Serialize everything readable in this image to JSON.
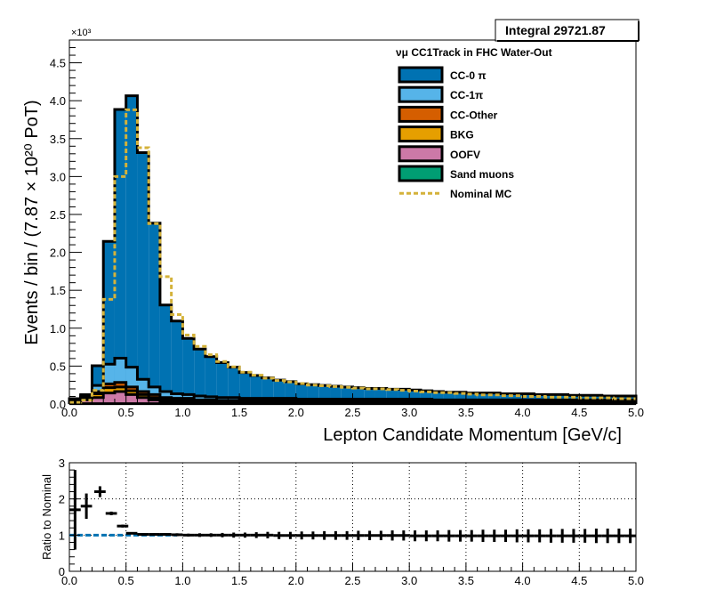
{
  "chart_data": [
    {
      "type": "stacked-histogram",
      "stat_box": "Integral 29721.87",
      "exponent_label": "×10³",
      "ylabel": "Events / bin / (7.87  × 10²⁰ PoT)",
      "xlabel": "Lepton Candidate Momentum [GeV/c]",
      "legend_title": "νμ CC1Track in FHC Water-Out",
      "legend_placement": "top-right",
      "xlim": [
        0,
        5
      ],
      "ylim": [
        0,
        4.8
      ],
      "x_ticks": [
        "0.0",
        "0.5",
        "1.0",
        "1.5",
        "2.0",
        "2.5",
        "3.0",
        "3.5",
        "4.0",
        "4.5",
        "5.0"
      ],
      "y_ticks": [
        "0.0",
        "0.5",
        "1.0",
        "1.5",
        "2.0",
        "2.5",
        "3.0",
        "3.5",
        "4.0",
        "4.5"
      ],
      "bin_edges": [
        0,
        0.1,
        0.2,
        0.3,
        0.4,
        0.5,
        0.6,
        0.7,
        0.8,
        0.9,
        1.0,
        1.1,
        1.2,
        1.3,
        1.4,
        1.5,
        1.6,
        1.7,
        1.8,
        1.9,
        2.0,
        2.1,
        2.2,
        2.3,
        2.4,
        2.5,
        2.6,
        2.7,
        2.8,
        2.9,
        3.0,
        3.1,
        3.2,
        3.3,
        3.4,
        3.5,
        3.6,
        3.7,
        3.8,
        3.9,
        4.0,
        4.1,
        4.2,
        4.3,
        4.4,
        4.5,
        4.6,
        4.7,
        4.8,
        4.9,
        5.0
      ],
      "series": [
        {
          "name": "CC-0 π",
          "color": "#0072b2",
          "values": [
            0.005,
            0.008,
            0.26,
            1.62,
            3.28,
            3.58,
            2.99,
            2.16,
            1.14,
            0.96,
            0.74,
            0.62,
            0.53,
            0.46,
            0.4,
            0.34,
            0.3,
            0.27,
            0.24,
            0.22,
            0.2,
            0.19,
            0.18,
            0.17,
            0.16,
            0.15,
            0.14,
            0.14,
            0.13,
            0.13,
            0.12,
            0.11,
            0.11,
            0.1,
            0.1,
            0.09,
            0.09,
            0.09,
            0.08,
            0.08,
            0.08,
            0.07,
            0.07,
            0.07,
            0.06,
            0.06,
            0.06,
            0.05,
            0.05,
            0.05
          ]
        },
        {
          "name": "CC-1π",
          "color": "#56b4e9",
          "values": [
            0.005,
            0.02,
            0.08,
            0.26,
            0.32,
            0.26,
            0.16,
            0.1,
            0.08,
            0.06,
            0.05,
            0.05,
            0.04,
            0.04,
            0.04,
            0.03,
            0.03,
            0.03,
            0.03,
            0.03,
            0.02,
            0.02,
            0.02,
            0.02,
            0.02,
            0.02,
            0.02,
            0.02,
            0.02,
            0.02,
            0.02,
            0.02,
            0.01,
            0.01,
            0.01,
            0.01,
            0.01,
            0.01,
            0.01,
            0.01,
            0.01,
            0.01,
            0.01,
            0.01,
            0.01,
            0.01,
            0.01,
            0.01,
            0.01,
            0.01
          ]
        },
        {
          "name": "CC-Other",
          "color": "#d55e00",
          "values": [
            0.005,
            0.01,
            0.03,
            0.05,
            0.06,
            0.05,
            0.04,
            0.04,
            0.03,
            0.03,
            0.03,
            0.02,
            0.02,
            0.02,
            0.02,
            0.02,
            0.02,
            0.02,
            0.02,
            0.02,
            0.02,
            0.02,
            0.02,
            0.02,
            0.02,
            0.02,
            0.02,
            0.02,
            0.02,
            0.02,
            0.02,
            0.02,
            0.02,
            0.02,
            0.02,
            0.02,
            0.02,
            0.02,
            0.02,
            0.02,
            0.02,
            0.02,
            0.02,
            0.02,
            0.02,
            0.02,
            0.02,
            0.02,
            0.02,
            0.02
          ]
        },
        {
          "name": "BKG",
          "color": "#e69f00",
          "values": [
            0.02,
            0.03,
            0.05,
            0.07,
            0.06,
            0.05,
            0.04,
            0.03,
            0.02,
            0.02,
            0.02,
            0.01,
            0.01,
            0.01,
            0.01,
            0.01,
            0.01,
            0.01,
            0.01,
            0.01,
            0.01,
            0.01,
            0.01,
            0.01,
            0.01,
            0.01,
            0.01,
            0.01,
            0.01,
            0.01,
            0.01,
            0.01,
            0.01,
            0.01,
            0.01,
            0.01,
            0.01,
            0.01,
            0.01,
            0.01,
            0.01,
            0.01,
            0.01,
            0.01,
            0.01,
            0.01,
            0.01,
            0.01,
            0.01,
            0.01
          ]
        },
        {
          "name": "OOFV",
          "color": "#cc79a7",
          "values": [
            0.03,
            0.05,
            0.08,
            0.14,
            0.16,
            0.12,
            0.08,
            0.05,
            0.03,
            0.02,
            0.02,
            0.02,
            0.02,
            0.01,
            0.01,
            0.01,
            0.01,
            0.01,
            0.01,
            0.01,
            0.01,
            0.01,
            0.01,
            0.01,
            0.01,
            0.01,
            0.01,
            0.01,
            0.01,
            0.01,
            0.01,
            0.01,
            0.01,
            0.01,
            0.01,
            0.01,
            0.01,
            0.01,
            0.01,
            0.01,
            0.01,
            0.01,
            0.01,
            0.01,
            0.01,
            0.01,
            0.01,
            0.01,
            0.01,
            0.01
          ]
        },
        {
          "name": "Sand muons",
          "color": "#009e73",
          "values": [
            0.005,
            0.005,
            0.005,
            0.005,
            0.005,
            0.005,
            0.005,
            0.005,
            0.005,
            0.005,
            0.005,
            0.005,
            0.005,
            0.005,
            0.005,
            0.005,
            0.005,
            0.005,
            0.005,
            0.005,
            0.005,
            0.005,
            0.005,
            0.005,
            0.005,
            0.005,
            0.005,
            0.005,
            0.005,
            0.005,
            0.005,
            0.005,
            0.005,
            0.005,
            0.005,
            0.005,
            0.005,
            0.005,
            0.005,
            0.005,
            0.005,
            0.005,
            0.005,
            0.005,
            0.005,
            0.005,
            0.005,
            0.005,
            0.005,
            0.005
          ]
        }
      ],
      "nominal": {
        "name": "Nominal MC",
        "color": "#d4b23a",
        "style": "dashed",
        "values": [
          0.02,
          0.05,
          0.18,
          1.38,
          3.0,
          3.88,
          3.38,
          2.38,
          1.68,
          1.18,
          0.91,
          0.76,
          0.65,
          0.56,
          0.49,
          0.42,
          0.38,
          0.34,
          0.31,
          0.29,
          0.27,
          0.25,
          0.24,
          0.23,
          0.22,
          0.21,
          0.2,
          0.2,
          0.19,
          0.18,
          0.17,
          0.16,
          0.15,
          0.15,
          0.14,
          0.13,
          0.12,
          0.12,
          0.11,
          0.11,
          0.1,
          0.1,
          0.09,
          0.09,
          0.09,
          0.08,
          0.08,
          0.08,
          0.07,
          0.07
        ]
      }
    },
    {
      "type": "ratio",
      "ylabel": "Ratio to Nominal",
      "xlim": [
        0,
        5
      ],
      "ylim": [
        0,
        3
      ],
      "grid": true,
      "x_ticks": [
        "0.0",
        "0.5",
        "1.0",
        "1.5",
        "2.0",
        "2.5",
        "3.0",
        "3.5",
        "4.0",
        "4.5",
        "5.0"
      ],
      "y_ticks": [
        "0",
        "1",
        "2",
        "3"
      ],
      "reference_line": {
        "value": 1,
        "color": "#0072b2",
        "style": "dashed"
      },
      "points": [
        {
          "x": 0.05,
          "y": 1.7,
          "err": 1.1
        },
        {
          "x": 0.15,
          "y": 1.8,
          "err": 0.35
        },
        {
          "x": 0.27,
          "y": 2.2,
          "err": 0.15
        },
        {
          "x": 0.37,
          "y": 1.6,
          "err": 0.05
        },
        {
          "x": 0.47,
          "y": 1.25,
          "err": 0.04
        },
        {
          "x": 0.55,
          "y": 1.05,
          "err": 0.03
        },
        {
          "x": 0.65,
          "y": 1.02,
          "err": 0.03
        },
        {
          "x": 0.75,
          "y": 1.02,
          "err": 0.03
        },
        {
          "x": 0.85,
          "y": 1.02,
          "err": 0.03
        },
        {
          "x": 0.95,
          "y": 1.01,
          "err": 0.04
        },
        {
          "x": 1.05,
          "y": 1.0,
          "err": 0.04
        },
        {
          "x": 1.15,
          "y": 1.0,
          "err": 0.05
        },
        {
          "x": 1.25,
          "y": 1.0,
          "err": 0.05
        },
        {
          "x": 1.35,
          "y": 1.0,
          "err": 0.06
        },
        {
          "x": 1.45,
          "y": 1.0,
          "err": 0.07
        },
        {
          "x": 1.55,
          "y": 1.0,
          "err": 0.07
        },
        {
          "x": 1.65,
          "y": 1.0,
          "err": 0.08
        },
        {
          "x": 1.75,
          "y": 1.0,
          "err": 0.09
        },
        {
          "x": 1.85,
          "y": 0.99,
          "err": 0.1
        },
        {
          "x": 1.95,
          "y": 0.99,
          "err": 0.1
        },
        {
          "x": 2.05,
          "y": 0.99,
          "err": 0.11
        },
        {
          "x": 2.15,
          "y": 0.99,
          "err": 0.11
        },
        {
          "x": 2.25,
          "y": 0.99,
          "err": 0.12
        },
        {
          "x": 2.35,
          "y": 0.99,
          "err": 0.12
        },
        {
          "x": 2.45,
          "y": 0.99,
          "err": 0.12
        },
        {
          "x": 2.55,
          "y": 0.99,
          "err": 0.13
        },
        {
          "x": 2.65,
          "y": 0.99,
          "err": 0.13
        },
        {
          "x": 2.75,
          "y": 0.99,
          "err": 0.13
        },
        {
          "x": 2.85,
          "y": 0.99,
          "err": 0.14
        },
        {
          "x": 2.95,
          "y": 0.99,
          "err": 0.14
        },
        {
          "x": 3.05,
          "y": 0.98,
          "err": 0.15
        },
        {
          "x": 3.15,
          "y": 0.98,
          "err": 0.15
        },
        {
          "x": 3.25,
          "y": 0.98,
          "err": 0.15
        },
        {
          "x": 3.35,
          "y": 0.98,
          "err": 0.16
        },
        {
          "x": 3.45,
          "y": 0.98,
          "err": 0.16
        },
        {
          "x": 3.55,
          "y": 0.98,
          "err": 0.16
        },
        {
          "x": 3.65,
          "y": 0.98,
          "err": 0.17
        },
        {
          "x": 3.75,
          "y": 0.98,
          "err": 0.17
        },
        {
          "x": 3.85,
          "y": 0.98,
          "err": 0.17
        },
        {
          "x": 3.95,
          "y": 0.98,
          "err": 0.18
        },
        {
          "x": 4.05,
          "y": 0.98,
          "err": 0.18
        },
        {
          "x": 4.15,
          "y": 0.98,
          "err": 0.18
        },
        {
          "x": 4.25,
          "y": 0.98,
          "err": 0.19
        },
        {
          "x": 4.35,
          "y": 0.98,
          "err": 0.19
        },
        {
          "x": 4.45,
          "y": 0.98,
          "err": 0.19
        },
        {
          "x": 4.55,
          "y": 0.98,
          "err": 0.19
        },
        {
          "x": 4.65,
          "y": 0.98,
          "err": 0.2
        },
        {
          "x": 4.75,
          "y": 0.98,
          "err": 0.2
        },
        {
          "x": 4.85,
          "y": 0.98,
          "err": 0.2
        },
        {
          "x": 4.95,
          "y": 0.98,
          "err": 0.2
        }
      ]
    }
  ]
}
